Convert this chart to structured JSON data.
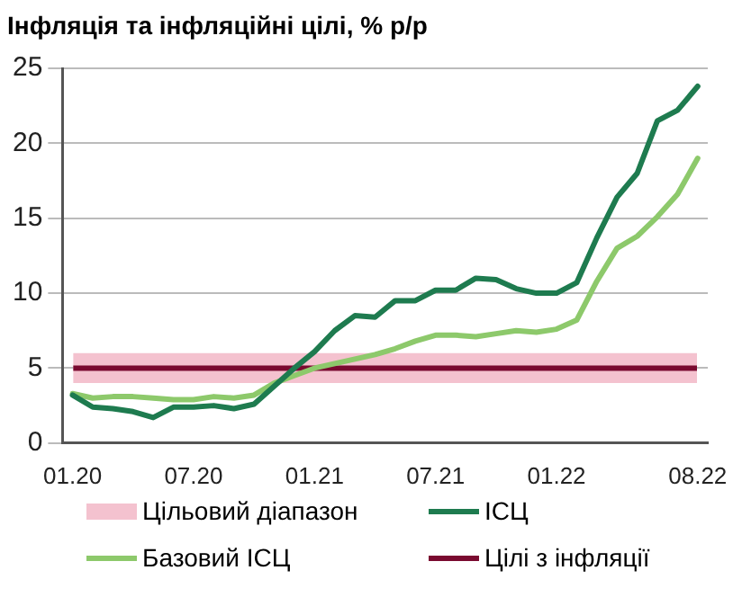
{
  "chart_data": {
    "type": "line",
    "title": "Інфляція та інфляційні цілі, % р/р",
    "categories": [
      "01.20",
      null,
      null,
      null,
      null,
      null,
      "07.20",
      null,
      null,
      null,
      null,
      null,
      "01.21",
      null,
      null,
      null,
      null,
      null,
      "07.21",
      null,
      null,
      null,
      null,
      null,
      "01.22",
      null,
      null,
      null,
      null,
      null,
      null,
      "08.22"
    ],
    "series": [
      {
        "name": "ІСЦ",
        "color": "#1e7b4f",
        "values": [
          3.2,
          2.4,
          2.3,
          2.1,
          1.7,
          2.4,
          2.4,
          2.5,
          2.3,
          2.6,
          3.8,
          5.0,
          6.1,
          7.5,
          8.5,
          8.4,
          9.5,
          9.5,
          10.2,
          10.2,
          11.0,
          10.9,
          10.3,
          10.0,
          10.0,
          10.7,
          13.7,
          16.4,
          18.0,
          21.5,
          22.2,
          23.8
        ]
      },
      {
        "name": "Базовий ІСЦ",
        "color": "#8dc96b",
        "values": [
          3.3,
          3.0,
          3.1,
          3.1,
          3.0,
          2.9,
          2.9,
          3.1,
          3.0,
          3.2,
          4.0,
          4.5,
          5.0,
          5.3,
          5.6,
          5.9,
          6.3,
          6.8,
          7.2,
          7.2,
          7.1,
          7.3,
          7.5,
          7.4,
          7.6,
          8.2,
          10.8,
          13.0,
          13.8,
          15.1,
          16.6,
          19.0
        ]
      }
    ],
    "bands": [
      {
        "axis": "y",
        "from": 4,
        "to": 6,
        "label": "Цільовий діапазон",
        "color": "#f4c2cf"
      }
    ],
    "ref_lines": [
      {
        "axis": "y",
        "value": 5,
        "label": "Цілі з інфляції",
        "color": "#7a0a30"
      }
    ],
    "ylim": [
      0,
      25
    ],
    "yticks": [
      0,
      5,
      10,
      15,
      20,
      25
    ],
    "grid": "y",
    "legend": "bottom",
    "marker": "none",
    "line_style": "solid"
  }
}
